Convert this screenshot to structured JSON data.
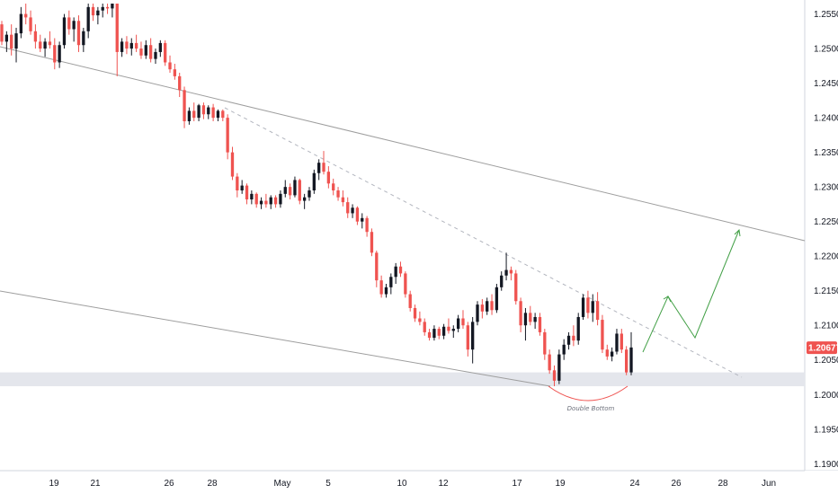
{
  "chart_data": {
    "type": "candlestick",
    "symbol_theme": {
      "up_color": "#131722",
      "down_color": "#ef5350",
      "support_zone_color": "#e4e6ec",
      "channel_color": "#9e9e9e",
      "projection_color": "#43a047",
      "annotation_arc_color": "#ef5350",
      "price_tag_color": "#ef5350"
    },
    "y_axis": {
      "min": 1.189,
      "max": 1.2565,
      "ticks": [
        "1.25500",
        "1.25000",
        "1.24500",
        "1.24000",
        "1.23500",
        "1.23000",
        "1.22500",
        "1.22000",
        "1.21500",
        "1.21000",
        "1.20500",
        "1.20000",
        "1.19500",
        "1.19000"
      ]
    },
    "x_axis": {
      "labels": [
        "19",
        "21",
        "26",
        "28",
        "May",
        "5",
        "10",
        "12",
        "17",
        "19",
        "24",
        "26",
        "28",
        "Jun"
      ]
    },
    "current_price": "1.20677",
    "annotation": "Double Bottom",
    "support_zone": [
      1.2012,
      1.2032
    ],
    "candles": [
      [
        1.2535,
        1.254,
        1.2505,
        1.251
      ],
      [
        1.251,
        1.2525,
        1.2495,
        1.252
      ],
      [
        1.252,
        1.2535,
        1.249,
        1.25
      ],
      [
        1.25,
        1.253,
        1.248,
        1.2522
      ],
      [
        1.2522,
        1.256,
        1.2515,
        1.255
      ],
      [
        1.255,
        1.2565,
        1.2535,
        1.2545
      ],
      [
        1.2545,
        1.2555,
        1.252,
        1.2525
      ],
      [
        1.2525,
        1.2535,
        1.25,
        1.251
      ],
      [
        1.251,
        1.252,
        1.2495,
        1.25
      ],
      [
        1.25,
        1.2515,
        1.2488,
        1.251
      ],
      [
        1.251,
        1.2525,
        1.25,
        1.2505
      ],
      [
        1.2505,
        1.2515,
        1.247,
        1.248
      ],
      [
        1.248,
        1.251,
        1.2472,
        1.2505
      ],
      [
        1.2505,
        1.255,
        1.25,
        1.2545
      ],
      [
        1.2545,
        1.2555,
        1.252,
        1.2528
      ],
      [
        1.2528,
        1.2545,
        1.251,
        1.254
      ],
      [
        1.254,
        1.2548,
        1.2495,
        1.2505
      ],
      [
        1.2505,
        1.253,
        1.2495,
        1.2525
      ],
      [
        1.2525,
        1.2565,
        1.2515,
        1.256
      ],
      [
        1.256,
        1.2565,
        1.254,
        1.2548
      ],
      [
        1.2548,
        1.256,
        1.2535,
        1.2555
      ],
      [
        1.2555,
        1.2565,
        1.2545,
        1.256
      ],
      [
        1.256,
        1.2565,
        1.255,
        1.2558
      ],
      [
        1.2558,
        1.2565,
        1.2545,
        1.2565
      ],
      [
        1.2565,
        1.2565,
        1.246,
        1.2495
      ],
      [
        1.2495,
        1.2515,
        1.2488,
        1.251
      ],
      [
        1.251,
        1.2518,
        1.2492,
        1.25
      ],
      [
        1.25,
        1.2515,
        1.249,
        1.2508
      ],
      [
        1.2508,
        1.252,
        1.2495,
        1.25
      ],
      [
        1.25,
        1.251,
        1.2485,
        1.249
      ],
      [
        1.249,
        1.2512,
        1.2485,
        1.2505
      ],
      [
        1.2505,
        1.2515,
        1.248,
        1.2485
      ],
      [
        1.2485,
        1.25,
        1.2478,
        1.2495
      ],
      [
        1.2495,
        1.2512,
        1.2488,
        1.2508
      ],
      [
        1.2508,
        1.2512,
        1.2475,
        1.248
      ],
      [
        1.248,
        1.249,
        1.2465,
        1.247
      ],
      [
        1.247,
        1.2478,
        1.2455,
        1.246
      ],
      [
        1.246,
        1.2465,
        1.243,
        1.244
      ],
      [
        1.244,
        1.2445,
        1.2385,
        1.2395
      ],
      [
        1.2395,
        1.2415,
        1.239,
        1.241
      ],
      [
        1.241,
        1.2422,
        1.2395,
        1.24
      ],
      [
        1.24,
        1.242,
        1.2395,
        1.2418
      ],
      [
        1.2418,
        1.2422,
        1.2398,
        1.2405
      ],
      [
        1.2405,
        1.2418,
        1.2398,
        1.2415
      ],
      [
        1.2415,
        1.242,
        1.2395,
        1.24
      ],
      [
        1.24,
        1.2412,
        1.2395,
        1.241
      ],
      [
        1.241,
        1.2412,
        1.2395,
        1.24
      ],
      [
        1.24,
        1.2405,
        1.234,
        1.235
      ],
      [
        1.235,
        1.2358,
        1.231,
        1.2315
      ],
      [
        1.2315,
        1.232,
        1.2285,
        1.2295
      ],
      [
        1.2295,
        1.231,
        1.229,
        1.2302
      ],
      [
        1.2302,
        1.2305,
        1.2275,
        1.2282
      ],
      [
        1.2282,
        1.2295,
        1.2275,
        1.229
      ],
      [
        1.229,
        1.2292,
        1.227,
        1.2275
      ],
      [
        1.2275,
        1.2285,
        1.2268,
        1.228
      ],
      [
        1.228,
        1.229,
        1.227,
        1.2275
      ],
      [
        1.2275,
        1.2288,
        1.2268,
        1.2285
      ],
      [
        1.2285,
        1.2288,
        1.227,
        1.2275
      ],
      [
        1.2275,
        1.2295,
        1.227,
        1.229
      ],
      [
        1.229,
        1.231,
        1.2285,
        1.23
      ],
      [
        1.23,
        1.2305,
        1.2282,
        1.2288
      ],
      [
        1.2288,
        1.2315,
        1.2285,
        1.231
      ],
      [
        1.231,
        1.2312,
        1.2275,
        1.228
      ],
      [
        1.228,
        1.229,
        1.2268,
        1.2285
      ],
      [
        1.2285,
        1.23,
        1.228,
        1.2295
      ],
      [
        1.2295,
        1.2325,
        1.229,
        1.232
      ],
      [
        1.232,
        1.234,
        1.231,
        1.2335
      ],
      [
        1.2335,
        1.2352,
        1.2318,
        1.2322
      ],
      [
        1.2322,
        1.233,
        1.2298,
        1.2305
      ],
      [
        1.2305,
        1.2312,
        1.2288,
        1.2295
      ],
      [
        1.2295,
        1.23,
        1.228,
        1.2285
      ],
      [
        1.2285,
        1.2295,
        1.2272,
        1.2278
      ],
      [
        1.2278,
        1.2285,
        1.2255,
        1.2262
      ],
      [
        1.2262,
        1.2275,
        1.2255,
        1.227
      ],
      [
        1.227,
        1.2272,
        1.2245,
        1.225
      ],
      [
        1.225,
        1.2262,
        1.224,
        1.2255
      ],
      [
        1.2255,
        1.2258,
        1.2228,
        1.2235
      ],
      [
        1.2235,
        1.224,
        1.22,
        1.2205
      ],
      [
        1.2205,
        1.2208,
        1.2155,
        1.2165
      ],
      [
        1.2165,
        1.2172,
        1.214,
        1.2145
      ],
      [
        1.2145,
        1.216,
        1.214,
        1.2155
      ],
      [
        1.2155,
        1.2175,
        1.2145,
        1.217
      ],
      [
        1.217,
        1.219,
        1.216,
        1.2185
      ],
      [
        1.2185,
        1.2192,
        1.217,
        1.2175
      ],
      [
        1.2175,
        1.2178,
        1.214,
        1.2145
      ],
      [
        1.2145,
        1.215,
        1.212,
        1.2125
      ],
      [
        1.2125,
        1.213,
        1.2105,
        1.211
      ],
      [
        1.211,
        1.212,
        1.21,
        1.2105
      ],
      [
        1.2105,
        1.211,
        1.2085,
        1.209
      ],
      [
        1.209,
        1.2095,
        1.2078,
        1.2082
      ],
      [
        1.2082,
        1.21,
        1.2078,
        1.2095
      ],
      [
        1.2095,
        1.2098,
        1.208,
        1.2085
      ],
      [
        1.2085,
        1.2102,
        1.208,
        1.2098
      ],
      [
        1.2098,
        1.211,
        1.2088,
        1.2092
      ],
      [
        1.2092,
        1.21,
        1.2082,
        1.2095
      ],
      [
        1.2095,
        1.2115,
        1.209,
        1.211
      ],
      [
        1.211,
        1.2122,
        1.2095,
        1.21
      ],
      [
        1.21,
        1.2105,
        1.2055,
        1.2065
      ],
      [
        1.2065,
        1.2112,
        1.2045,
        1.2105
      ],
      [
        1.2105,
        1.2135,
        1.21,
        1.213
      ],
      [
        1.213,
        1.2138,
        1.211,
        1.212
      ],
      [
        1.212,
        1.214,
        1.2115,
        1.2135
      ],
      [
        1.2135,
        1.2145,
        1.2115,
        1.2122
      ],
      [
        1.2122,
        1.216,
        1.2118,
        1.2155
      ],
      [
        1.2155,
        1.2178,
        1.215,
        1.2172
      ],
      [
        1.2172,
        1.2205,
        1.2165,
        1.218
      ],
      [
        1.218,
        1.2185,
        1.2165,
        1.2175
      ],
      [
        1.2175,
        1.218,
        1.213,
        1.2135
      ],
      [
        1.2135,
        1.214,
        1.209,
        1.21
      ],
      [
        1.21,
        1.2125,
        1.2078,
        1.2118
      ],
      [
        1.2118,
        1.2128,
        1.21,
        1.2105
      ],
      [
        1.2105,
        1.2118,
        1.2095,
        1.2112
      ],
      [
        1.2112,
        1.2118,
        1.2085,
        1.209
      ],
      [
        1.209,
        1.2095,
        1.205,
        1.2058
      ],
      [
        1.2058,
        1.2065,
        1.203,
        1.2035
      ],
      [
        1.2035,
        1.2042,
        1.2012,
        1.202
      ],
      [
        1.202,
        1.2065,
        1.2015,
        1.2058
      ],
      [
        1.2058,
        1.208,
        1.205,
        1.2072
      ],
      [
        1.2072,
        1.209,
        1.2065,
        1.2085
      ],
      [
        1.2085,
        1.21,
        1.207,
        1.2078
      ],
      [
        1.2078,
        1.2118,
        1.2072,
        1.2112
      ],
      [
        1.2112,
        1.2145,
        1.2108,
        1.214
      ],
      [
        1.214,
        1.215,
        1.211,
        1.2118
      ],
      [
        1.2118,
        1.2145,
        1.2105,
        1.2135
      ],
      [
        1.2135,
        1.2148,
        1.21,
        1.2108
      ],
      [
        1.2108,
        1.2115,
        1.206,
        1.2065
      ],
      [
        1.2065,
        1.2072,
        1.205,
        1.2055
      ],
      [
        1.2055,
        1.2068,
        1.2048,
        1.2062
      ],
      [
        1.2062,
        1.2095,
        1.2058,
        1.2088
      ],
      [
        1.2088,
        1.2095,
        1.206,
        1.2065
      ],
      [
        1.2065,
        1.207,
        1.2028,
        1.2032
      ],
      [
        1.2032,
        1.209,
        1.2028,
        1.2068
      ]
    ]
  }
}
